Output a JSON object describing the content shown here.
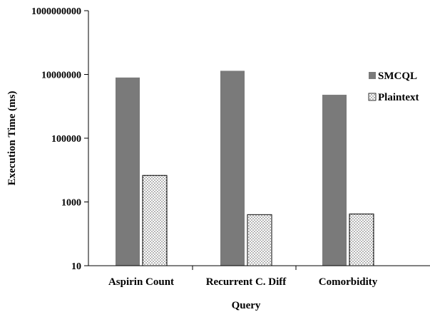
{
  "chart_data": {
    "type": "bar",
    "title": "",
    "xlabel": "Query",
    "ylabel": "Execution Time (ms)",
    "yscale": "log",
    "ylim": [
      10,
      1000000000
    ],
    "yticks": [
      {
        "value": 10,
        "label": "10"
      },
      {
        "value": 1000,
        "label": "1000"
      },
      {
        "value": 100000,
        "label": "100000"
      },
      {
        "value": 10000000,
        "label": "10000000"
      },
      {
        "value": 1000000000,
        "label": "1000000000"
      }
    ],
    "categories": [
      "Aspirin Count",
      "Recurrent C. Diff",
      "Comorbidity"
    ],
    "series": [
      {
        "name": "SMCQL",
        "values": [
          8000000,
          13000000,
          2300000
        ],
        "color": "#7a7a7a",
        "pattern": "solid"
      },
      {
        "name": "Plaintext",
        "values": [
          6800,
          400,
          420
        ],
        "color": "#ffffff",
        "pattern": "dots"
      }
    ],
    "grid": false,
    "legend": "right"
  }
}
